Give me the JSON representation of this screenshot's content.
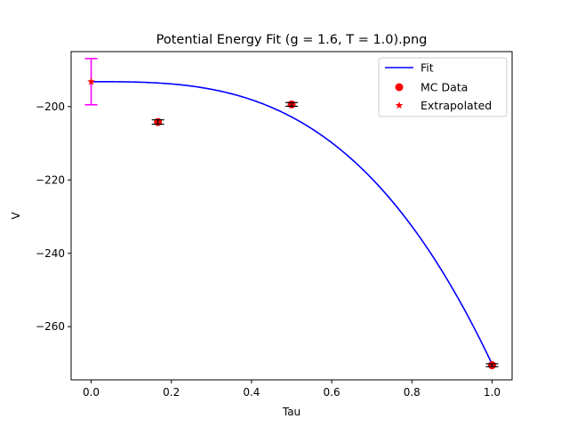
{
  "chart_data": {
    "type": "scatter",
    "title": "Potential Energy Fit (g = 1.6, T = 1.0).png",
    "xlabel": "Tau",
    "ylabel": "V",
    "xlim": [
      -0.05,
      1.05
    ],
    "ylim": [
      -274.5,
      -185
    ],
    "xticks": [
      0.0,
      0.2,
      0.4,
      0.6,
      0.8,
      1.0
    ],
    "xtick_labels": [
      "0.0",
      "0.2",
      "0.4",
      "0.6",
      "0.8",
      "1.0"
    ],
    "yticks": [
      -200,
      -220,
      -240,
      -260
    ],
    "ytick_labels": [
      "−200",
      "−220",
      "−240",
      "−260"
    ],
    "grid": false,
    "legend_position": "top-right",
    "series": [
      {
        "name": "Fit",
        "kind": "line",
        "color": "#0000ff",
        "model": {
          "form": "y = a + b*x^3",
          "a": -193.2,
          "b": -77.0
        }
      },
      {
        "name": "MC Data",
        "kind": "scatter",
        "color": "#ff0000",
        "marker": "circle",
        "points": [
          {
            "x": 0.1667,
            "y": -204.2,
            "err": 0.6
          },
          {
            "x": 0.5,
            "y": -199.4,
            "err": 0.5
          },
          {
            "x": 1.0,
            "y": -270.5,
            "err": 0.4
          }
        ]
      },
      {
        "name": "Extrapolated",
        "kind": "scatter",
        "color": "#ff0000",
        "errorbar_color": "#ff00ff",
        "marker": "star",
        "points": [
          {
            "x": 0.0,
            "y": -193.2,
            "err": 6.3
          }
        ]
      }
    ]
  }
}
